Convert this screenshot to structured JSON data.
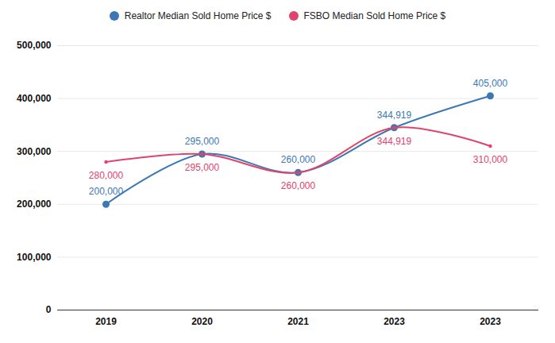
{
  "chart_data": {
    "type": "line",
    "categories": [
      "2019",
      "2020",
      "2021",
      "2023",
      "2023"
    ],
    "series": [
      {
        "name": "Realtor Median Sold Home Price $",
        "color": "#3c78b4",
        "marker": "circle",
        "line_style": "smooth",
        "values": [
          200000,
          295000,
          260000,
          344919,
          405000
        ],
        "value_labels": [
          "200,000",
          "295,000",
          "260,000",
          "344,919",
          "405,000"
        ]
      },
      {
        "name": "FSBO Median Sold Home Price $",
        "color": "#e0446b",
        "marker": "dot",
        "line_style": "smooth",
        "values": [
          280000,
          295000,
          260000,
          344919,
          310000
        ],
        "value_labels": [
          "280,000",
          "295,000",
          "260,000",
          "344,919",
          "310,000"
        ]
      }
    ],
    "ylim": [
      0,
      500000
    ],
    "yticks": [
      0,
      {
        "value": 100000,
        "label": "100,000"
      },
      {
        "value": 200000,
        "label": "200,000"
      },
      {
        "value": 300000,
        "label": "300,000"
      },
      {
        "value": 400000,
        "label": "400,000"
      },
      {
        "value": 500000,
        "label": "500,000"
      }
    ],
    "grid": true,
    "legend": "top",
    "data_labels": true
  }
}
